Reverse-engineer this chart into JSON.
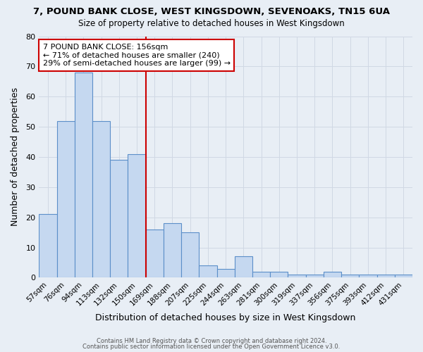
{
  "title": "7, POUND BANK CLOSE, WEST KINGSDOWN, SEVENOAKS, TN15 6UA",
  "subtitle": "Size of property relative to detached houses in West Kingsdown",
  "xlabel": "Distribution of detached houses by size in West Kingsdown",
  "ylabel": "Number of detached properties",
  "bar_labels": [
    "57sqm",
    "76sqm",
    "94sqm",
    "113sqm",
    "132sqm",
    "150sqm",
    "169sqm",
    "188sqm",
    "207sqm",
    "225sqm",
    "244sqm",
    "263sqm",
    "281sqm",
    "300sqm",
    "319sqm",
    "337sqm",
    "356sqm",
    "375sqm",
    "393sqm",
    "412sqm",
    "431sqm"
  ],
  "bar_values": [
    21,
    52,
    68,
    52,
    39,
    41,
    16,
    18,
    15,
    4,
    3,
    7,
    2,
    2,
    1,
    1,
    2,
    1,
    1,
    1,
    1
  ],
  "bar_color": "#c5d8f0",
  "bar_edge_color": "#5b8fc9",
  "annotation_text": "7 POUND BANK CLOSE: 156sqm\n← 71% of detached houses are smaller (240)\n29% of semi-detached houses are larger (99) →",
  "annotation_box_color": "#ffffff",
  "annotation_box_edge_color": "#cc0000",
  "vline_color": "#cc0000",
  "vline_position": 5.5,
  "ylim": [
    0,
    80
  ],
  "yticks": [
    0,
    10,
    20,
    30,
    40,
    50,
    60,
    70,
    80
  ],
  "grid_color": "#d0d8e4",
  "bg_color": "#e8eef5",
  "footer1": "Contains HM Land Registry data © Crown copyright and database right 2024.",
  "footer2": "Contains public sector information licensed under the Open Government Licence v3.0."
}
